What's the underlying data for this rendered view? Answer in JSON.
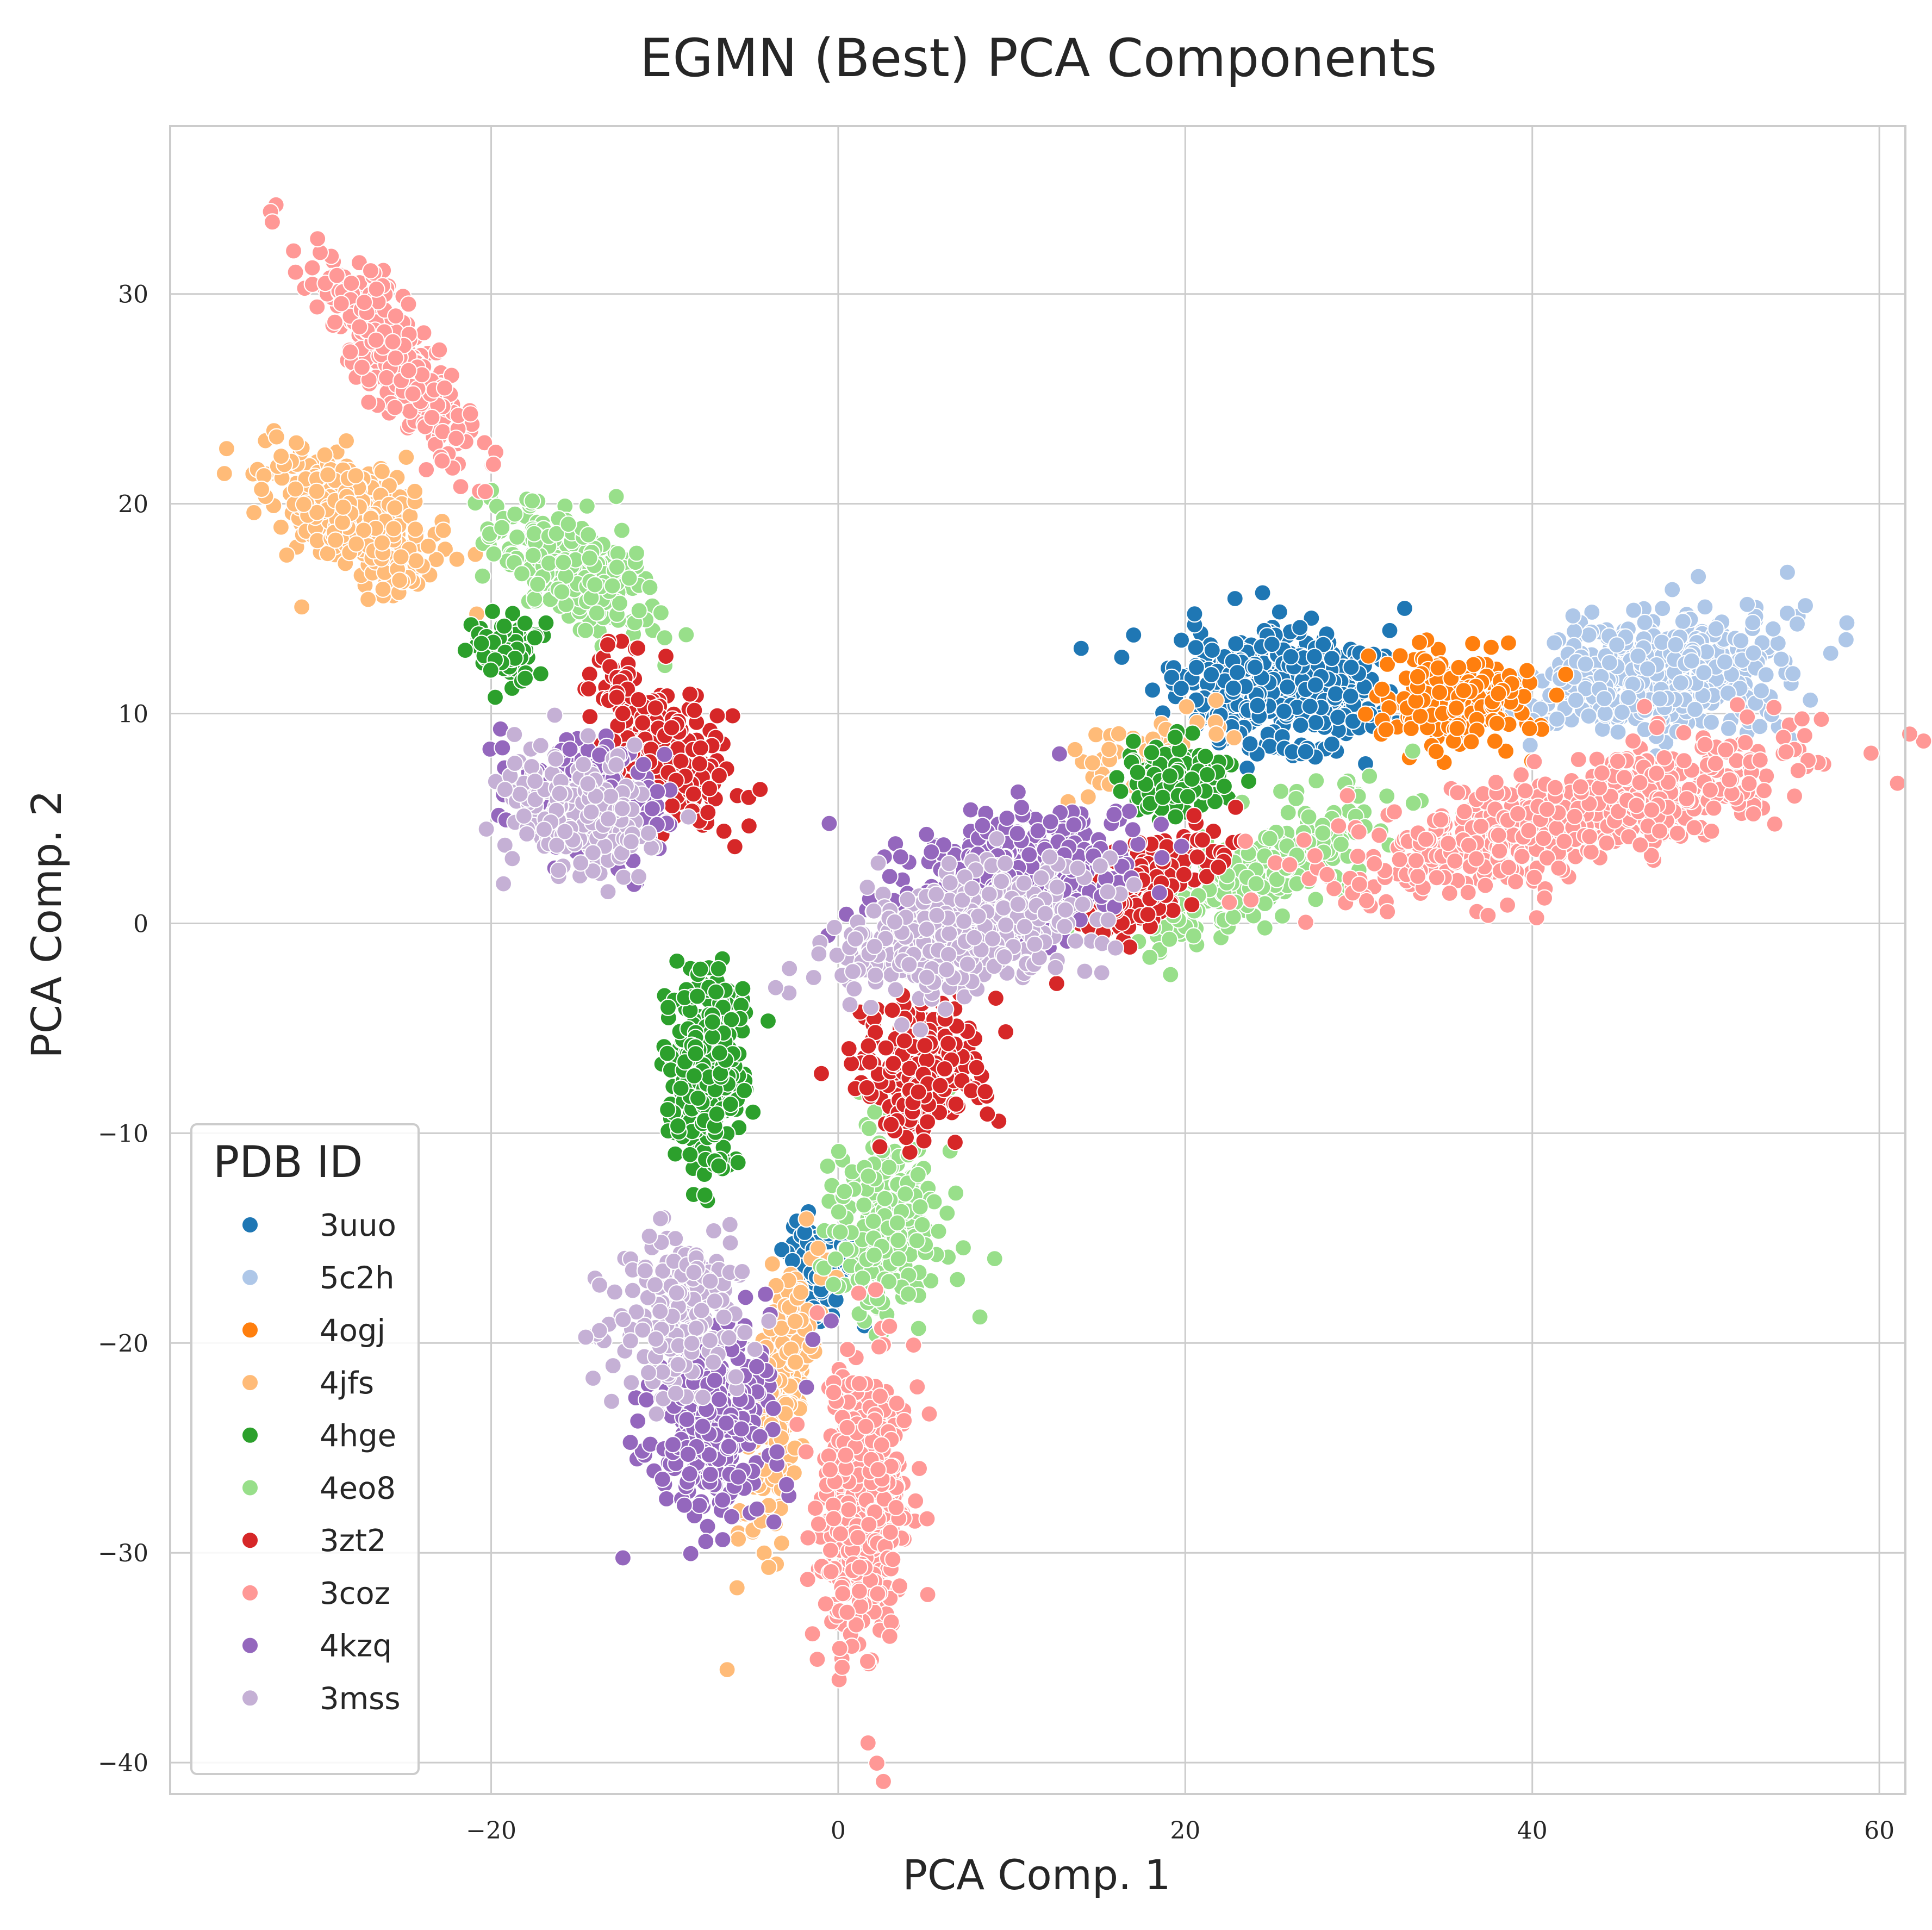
{
  "chart_data": {
    "type": "scatter",
    "title": "EGMN (Best) PCA Components",
    "xlabel": "PCA Comp. 1",
    "ylabel": "PCA Comp. 2",
    "xlim": [
      -38.5,
      61.5
    ],
    "ylim": [
      -41.5,
      38
    ],
    "xticks": [
      -20,
      0,
      20,
      40,
      60
    ],
    "yticks": [
      -40,
      -30,
      -20,
      -10,
      0,
      10,
      20,
      30
    ],
    "xtick_labels": [
      "−20",
      "0",
      "20",
      "40",
      "60"
    ],
    "ytick_labels": [
      "−40",
      "−30",
      "−20",
      "−10",
      "0",
      "10",
      "20",
      "30"
    ],
    "grid": true,
    "legend": {
      "title": "PDB ID",
      "placement": "lower-left",
      "entries": [
        "3uuo",
        "5c2h",
        "4ogj",
        "4jfs",
        "4hge",
        "4eo8",
        "3zt2",
        "3coz",
        "4kzq",
        "3mss"
      ]
    },
    "series": [
      {
        "name": "3uuo",
        "color": "#1f77b4",
        "clusters": [
          {
            "cx": 25.5,
            "cy": 11.0,
            "sx": 3.6,
            "sy": 1.8,
            "rot": 0.0,
            "n": 460
          },
          {
            "cx": -1.5,
            "cy": -16.5,
            "sx": 1.4,
            "sy": 1.8,
            "rot": 0.0,
            "n": 80
          }
        ]
      },
      {
        "name": "5c2h",
        "color": "#aec7e8",
        "clusters": [
          {
            "cx": 47.5,
            "cy": 12.0,
            "sx": 4.3,
            "sy": 1.7,
            "rot": 0.1,
            "n": 480
          }
        ]
      },
      {
        "name": "4ogj",
        "color": "#ff7f0e",
        "clusters": [
          {
            "cx": 35.5,
            "cy": 10.8,
            "sx": 2.6,
            "sy": 1.5,
            "rot": 0.0,
            "n": 220
          }
        ]
      },
      {
        "name": "4jfs",
        "color": "#ffbb78",
        "clusters": [
          {
            "cx": -28.0,
            "cy": 19.5,
            "sx": 3.2,
            "sy": 1.6,
            "rot": -0.45,
            "n": 360
          },
          {
            "cx": -3.2,
            "cy": -22.5,
            "sx": 0.9,
            "sy": 4.2,
            "rot": -0.22,
            "n": 220
          },
          {
            "cx": 17.0,
            "cy": 8.0,
            "sx": 3.0,
            "sy": 0.9,
            "rot": 0.35,
            "n": 60
          }
        ]
      },
      {
        "name": "4hge",
        "color": "#2ca02c",
        "clusters": [
          {
            "cx": -7.5,
            "cy": -7.0,
            "sx": 1.3,
            "sy": 2.9,
            "rot": 0.0,
            "n": 300
          },
          {
            "cx": 19.5,
            "cy": 6.8,
            "sx": 1.7,
            "sy": 1.0,
            "rot": 0.0,
            "n": 160
          },
          {
            "cx": -19.0,
            "cy": 13.0,
            "sx": 1.5,
            "sy": 0.9,
            "rot": 0.0,
            "n": 70
          }
        ]
      },
      {
        "name": "4eo8",
        "color": "#98df8a",
        "clusters": [
          {
            "cx": -15.5,
            "cy": 17.0,
            "sx": 3.2,
            "sy": 1.4,
            "rot": -0.5,
            "n": 280
          },
          {
            "cx": 24.0,
            "cy": 2.5,
            "sx": 4.5,
            "sy": 1.3,
            "rot": 0.38,
            "n": 280
          },
          {
            "cx": 2.7,
            "cy": -14.5,
            "sx": 2.0,
            "sy": 2.9,
            "rot": 0.0,
            "n": 240
          }
        ]
      },
      {
        "name": "3zt2",
        "color": "#d62728",
        "clusters": [
          {
            "cx": -10.0,
            "cy": 8.5,
            "sx": 3.0,
            "sy": 1.5,
            "rot": -0.7,
            "n": 260
          },
          {
            "cx": 4.5,
            "cy": -7.0,
            "sx": 2.2,
            "sy": 2.0,
            "rot": -0.1,
            "n": 220
          },
          {
            "cx": 18.0,
            "cy": 2.0,
            "sx": 3.2,
            "sy": 1.3,
            "rot": 0.5,
            "n": 150
          }
        ]
      },
      {
        "name": "3coz",
        "color": "#ff9896",
        "clusters": [
          {
            "cx": -25.5,
            "cy": 27.0,
            "sx": 4.0,
            "sy": 1.2,
            "rot": -0.8,
            "n": 330
          },
          {
            "cx": 42.0,
            "cy": 5.0,
            "sx": 8.5,
            "sy": 1.5,
            "rot": 0.2,
            "n": 620
          },
          {
            "cx": 1.5,
            "cy": -27.5,
            "sx": 1.7,
            "sy": 4.5,
            "rot": -0.06,
            "n": 440
          }
        ]
      },
      {
        "name": "4kzq",
        "color": "#9467bd",
        "clusters": [
          {
            "cx": -14.5,
            "cy": 6.0,
            "sx": 2.6,
            "sy": 1.7,
            "rot": -0.25,
            "n": 260
          },
          {
            "cx": 10.5,
            "cy": 2.5,
            "sx": 4.3,
            "sy": 1.8,
            "rot": 0.15,
            "n": 360
          },
          {
            "cx": -7.5,
            "cy": -24.0,
            "sx": 2.3,
            "sy": 3.0,
            "rot": 0.0,
            "n": 300
          }
        ]
      },
      {
        "name": "3mss",
        "color": "#c5b0d5",
        "clusters": [
          {
            "cx": -15.5,
            "cy": 5.5,
            "sx": 2.8,
            "sy": 1.7,
            "rot": -0.3,
            "n": 200
          },
          {
            "cx": 7.0,
            "cy": -0.5,
            "sx": 4.6,
            "sy": 1.7,
            "rot": 0.15,
            "n": 400
          },
          {
            "cx": -9.0,
            "cy": -18.5,
            "sx": 2.3,
            "sy": 2.4,
            "rot": 0.0,
            "n": 190
          }
        ]
      }
    ]
  }
}
